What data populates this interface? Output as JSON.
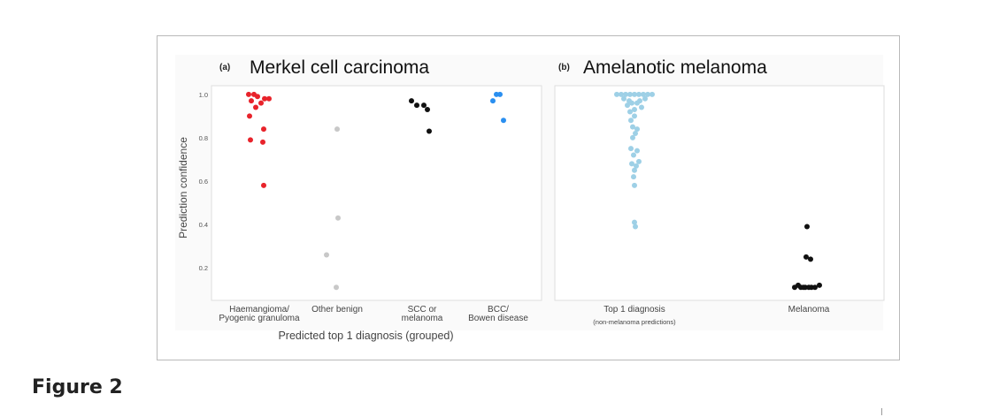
{
  "figure_label": "Figure 2",
  "colors": {
    "haemangioma": "#e8232b",
    "other_benign": "#c8c8c8",
    "scc": "#111111",
    "bcc": "#2a8ff0",
    "top1": "#9ed0e6",
    "melanoma": "#111111",
    "panel_bg": "#fafafa",
    "axes_border": "#dddddd"
  },
  "chart_data": [
    {
      "type": "scatter",
      "panel_tag": "(a)",
      "title": "Merkel cell carcinoma",
      "ylabel": "Prediction confidence",
      "xlabel": "Predicted top 1 diagnosis (grouped)",
      "ylim": [
        0.05,
        1.04
      ],
      "yticks": [
        "0.2",
        "0.4",
        "0.6",
        "0.8",
        "1.0"
      ],
      "grid": false,
      "categories": [
        [
          "Haemangioma/",
          "Pyogenic granuloma"
        ],
        [
          "Other benign"
        ],
        [
          "SCC or",
          "melanoma"
        ],
        [
          "BCC/",
          "Bowen disease"
        ]
      ],
      "series": [
        {
          "name": "Haemangioma/Pyogenic granuloma",
          "color_key": "haemangioma",
          "points": [
            [
              0,
              1.0
            ],
            [
              0,
              1.0
            ],
            [
              0,
              0.99
            ],
            [
              0,
              0.98
            ],
            [
              0,
              0.98
            ],
            [
              0,
              0.97
            ],
            [
              0,
              0.96
            ],
            [
              0,
              0.94
            ],
            [
              0,
              0.9
            ],
            [
              0,
              0.84
            ],
            [
              0,
              0.79
            ],
            [
              0,
              0.78
            ],
            [
              0,
              0.58
            ]
          ]
        },
        {
          "name": "Other benign",
          "color_key": "other_benign",
          "points": [
            [
              1,
              0.84
            ],
            [
              1,
              0.43
            ],
            [
              1,
              0.26
            ],
            [
              1,
              0.11
            ]
          ]
        },
        {
          "name": "SCC or melanoma",
          "color_key": "scc",
          "points": [
            [
              2,
              0.97
            ],
            [
              2,
              0.95
            ],
            [
              2,
              0.95
            ],
            [
              2,
              0.93
            ],
            [
              2,
              0.83
            ]
          ]
        },
        {
          "name": "BCC/Bowen disease",
          "color_key": "bcc",
          "points": [
            [
              3,
              1.0
            ],
            [
              3,
              1.0
            ],
            [
              3,
              0.97
            ],
            [
              3,
              0.88
            ]
          ]
        }
      ]
    },
    {
      "type": "scatter",
      "panel_tag": "(b)",
      "title": "Amelanotic melanoma",
      "xlabel": "",
      "ylim": [
        0.05,
        1.04
      ],
      "grid": false,
      "categories": [
        [
          "Top 1 diagnosis",
          "(non-melanoma predictions)"
        ],
        [
          "Melanoma"
        ]
      ],
      "series": [
        {
          "name": "Top 1 diagnosis",
          "color_key": "top1",
          "points": [
            [
              0,
              1.0
            ],
            [
              0,
              1.0
            ],
            [
              0,
              1.0
            ],
            [
              0,
              1.0
            ],
            [
              0,
              1.0
            ],
            [
              0,
              1.0
            ],
            [
              0,
              1.0
            ],
            [
              0,
              1.0
            ],
            [
              0,
              1.0
            ],
            [
              0,
              0.98
            ],
            [
              0,
              0.98
            ],
            [
              0,
              0.97
            ],
            [
              0,
              0.97
            ],
            [
              0,
              0.96
            ],
            [
              0,
              0.96
            ],
            [
              0,
              0.95
            ],
            [
              0,
              0.94
            ],
            [
              0,
              0.93
            ],
            [
              0,
              0.92
            ],
            [
              0,
              0.9
            ],
            [
              0,
              0.88
            ],
            [
              0,
              0.85
            ],
            [
              0,
              0.84
            ],
            [
              0,
              0.82
            ],
            [
              0,
              0.8
            ],
            [
              0,
              0.75
            ],
            [
              0,
              0.74
            ],
            [
              0,
              0.72
            ],
            [
              0,
              0.69
            ],
            [
              0,
              0.68
            ],
            [
              0,
              0.67
            ],
            [
              0,
              0.65
            ],
            [
              0,
              0.62
            ],
            [
              0,
              0.58
            ],
            [
              0,
              0.41
            ],
            [
              0,
              0.39
            ]
          ]
        },
        {
          "name": "Melanoma",
          "color_key": "melanoma",
          "points": [
            [
              1,
              0.39
            ],
            [
              1,
              0.25
            ],
            [
              1,
              0.24
            ],
            [
              1,
              0.12
            ],
            [
              1,
              0.12
            ],
            [
              1,
              0.11
            ],
            [
              1,
              0.11
            ],
            [
              1,
              0.11
            ],
            [
              1,
              0.11
            ],
            [
              1,
              0.11
            ],
            [
              1,
              0.11
            ],
            [
              1,
              0.11
            ]
          ]
        }
      ]
    }
  ]
}
